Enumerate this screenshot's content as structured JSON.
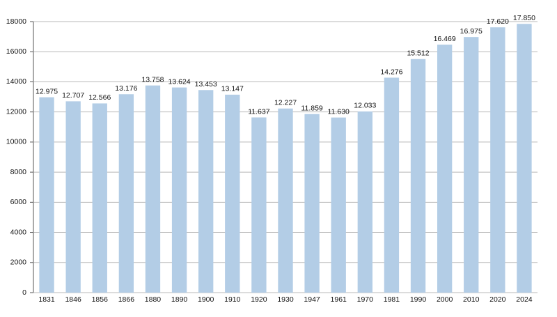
{
  "chart_data": {
    "type": "bar",
    "categories": [
      "1831",
      "1846",
      "1856",
      "1866",
      "1880",
      "1890",
      "1900",
      "1910",
      "1920",
      "1930",
      "1947",
      "1961",
      "1970",
      "1981",
      "1990",
      "2000",
      "2010",
      "2020",
      "2024"
    ],
    "values": [
      12975,
      12707,
      12566,
      13176,
      13758,
      13624,
      13453,
      13147,
      11637,
      12227,
      11859,
      11630,
      12033,
      14276,
      15512,
      16469,
      16975,
      17620,
      17850
    ],
    "value_labels": [
      "12.975",
      "12.707",
      "12.566",
      "13.176",
      "13.758",
      "13.624",
      "13.453",
      "13.147",
      "11.637",
      "12.227",
      "11.859",
      "11.630",
      "12.033",
      "14.276",
      "15.512",
      "16.469",
      "16.975",
      "17.620",
      "17.850"
    ],
    "color": "#b3cde6",
    "ylim": [
      0,
      18000
    ],
    "yticks": [
      0,
      2000,
      4000,
      6000,
      8000,
      10000,
      12000,
      14000,
      16000,
      18000
    ],
    "grid": true
  }
}
